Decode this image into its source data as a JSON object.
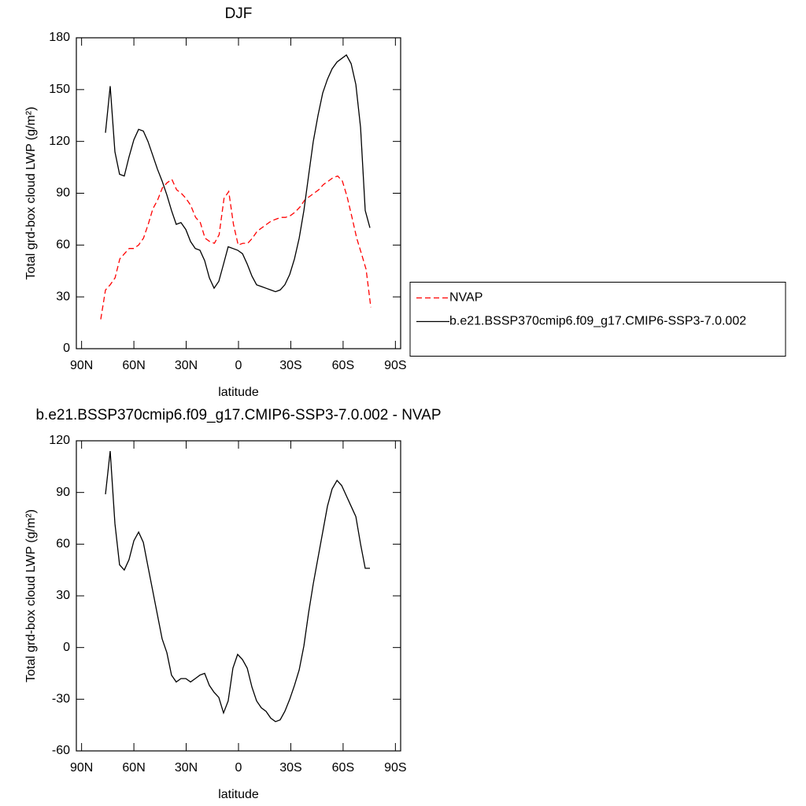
{
  "chart_data": [
    {
      "type": "line",
      "title": "DJF",
      "xlabel": "latitude",
      "ylabel": "Total grd-box cloud LWP (g/m²)",
      "xlim": [
        93,
        -93
      ],
      "xticks": [
        {
          "value": 90,
          "label": "90N"
        },
        {
          "value": 60,
          "label": "60N"
        },
        {
          "value": 30,
          "label": "30N"
        },
        0,
        {
          "value": -30,
          "label": "30S"
        },
        {
          "value": -60,
          "label": "60S"
        },
        {
          "value": -90,
          "label": "90S"
        }
      ],
      "ylim": [
        0,
        180
      ],
      "yticks": [
        0,
        30,
        60,
        90,
        120,
        150,
        180
      ],
      "legend": "right",
      "series": [
        {
          "name": "NVAP",
          "color": "#ff0000",
          "linestyle": "dashed",
          "x": [
            79.0,
            76.3,
            73.6,
            70.8,
            68.1,
            65.4,
            62.7,
            60.0,
            57.3,
            54.5,
            51.8,
            49.1,
            46.4,
            43.7,
            41.0,
            38.2,
            35.5,
            32.8,
            30.1,
            27.4,
            24.6,
            21.9,
            19.2,
            16.5,
            13.8,
            11.1,
            8.3,
            5.6,
            2.9,
            0.2,
            -2.5,
            -5.3,
            -8.0,
            -10.7,
            -13.4,
            -16.1,
            -18.9,
            -21.6,
            -24.3,
            -27.0,
            -29.7,
            -32.4,
            -35.2,
            -37.9,
            -40.6,
            -43.3,
            -46.0,
            -48.7,
            -51.5,
            -54.2,
            -56.9,
            -59.6,
            -62.3,
            -65.1,
            -67.8,
            -70.5,
            -73.2,
            -75.9
          ],
          "values": [
            17,
            34,
            37,
            41,
            52,
            55,
            58,
            58,
            60,
            64,
            72,
            81,
            86,
            93,
            96,
            98,
            92,
            90,
            87,
            83,
            76,
            73,
            64,
            62,
            61,
            66,
            87,
            91,
            72,
            60,
            61,
            61,
            64,
            68,
            70,
            72,
            74,
            75,
            76,
            76,
            77,
            79,
            82,
            86,
            88,
            90,
            92,
            95,
            97,
            99,
            100,
            97,
            88,
            76,
            64,
            55,
            46,
            24
          ]
        },
        {
          "name": "b.e21.BSSP370cmip6.f09_g17.CMIP6-SSP3-7.0.002",
          "color": "#000000",
          "linestyle": "solid",
          "x": [
            76.3,
            73.6,
            70.9,
            68.2,
            65.5,
            62.8,
            60.0,
            57.3,
            54.6,
            51.9,
            49.2,
            46.5,
            43.8,
            41.1,
            38.4,
            35.7,
            33.0,
            30.2,
            27.5,
            24.8,
            22.1,
            19.4,
            16.7,
            14.0,
            11.3,
            8.6,
            5.9,
            3.2,
            0.5,
            -2.3,
            -5.0,
            -7.7,
            -10.4,
            -13.1,
            -15.8,
            -18.5,
            -21.2,
            -23.9,
            -26.6,
            -29.4,
            -32.1,
            -34.8,
            -37.5,
            -40.2,
            -42.9,
            -45.6,
            -48.3,
            -51.0,
            -53.7,
            -56.5,
            -59.2,
            -61.9,
            -64.6,
            -67.3,
            -70.0,
            -72.7,
            -75.4
          ],
          "values": [
            125,
            152,
            114,
            101,
            100,
            111,
            121,
            127,
            126,
            120,
            112,
            104,
            97,
            89,
            80,
            72,
            73,
            69,
            62,
            58,
            57,
            51,
            41,
            35,
            39,
            49,
            59,
            58,
            57,
            55,
            49,
            42,
            37,
            36,
            35,
            34,
            33,
            34,
            37,
            43,
            52,
            64,
            80,
            100,
            120,
            135,
            148,
            156,
            162,
            166,
            168,
            170,
            165,
            153,
            128,
            80,
            70
          ]
        }
      ]
    },
    {
      "type": "line",
      "title": "b.e21.BSSP370cmip6.f09_g17.CMIP6-SSP3-7.0.002 - NVAP",
      "xlabel": "latitude",
      "ylabel": "Total grd-box cloud LWP (g/m²)",
      "xlim": [
        93,
        -93
      ],
      "xticks": [
        {
          "value": 90,
          "label": "90N"
        },
        {
          "value": 60,
          "label": "60N"
        },
        {
          "value": 30,
          "label": "30N"
        },
        0,
        {
          "value": -30,
          "label": "30S"
        },
        {
          "value": -60,
          "label": "60S"
        },
        {
          "value": -90,
          "label": "90S"
        }
      ],
      "ylim": [
        -60,
        120
      ],
      "yticks": [
        -60,
        -30,
        0,
        30,
        60,
        90,
        120
      ],
      "color": "#000000",
      "x": [
        76.3,
        73.6,
        70.9,
        68.2,
        65.5,
        62.8,
        60.0,
        57.3,
        54.6,
        51.9,
        49.2,
        46.5,
        43.8,
        41.1,
        38.4,
        35.7,
        33.0,
        30.2,
        27.5,
        24.8,
        22.1,
        19.4,
        16.7,
        14.0,
        11.3,
        8.6,
        5.9,
        3.2,
        0.5,
        -2.3,
        -5.0,
        -7.7,
        -10.4,
        -13.1,
        -15.8,
        -18.5,
        -21.2,
        -23.9,
        -26.6,
        -29.4,
        -32.1,
        -34.8,
        -37.5,
        -40.2,
        -42.9,
        -45.6,
        -48.3,
        -51.0,
        -53.7,
        -56.5,
        -59.2,
        -61.9,
        -64.6,
        -67.3,
        -70.0,
        -72.7,
        -75.4
      ],
      "values": [
        89,
        114,
        72,
        48,
        45,
        51,
        62,
        67,
        61,
        47,
        33,
        19,
        5,
        -3,
        -16,
        -20,
        -18,
        -18,
        -20,
        -18,
        -16,
        -15,
        -22,
        -26,
        -29,
        -38,
        -31,
        -12,
        -4,
        -7,
        -12,
        -23,
        -31,
        -35,
        -37,
        -41,
        -43,
        -42,
        -37,
        -30,
        -22,
        -13,
        1,
        20,
        37,
        52,
        67,
        82,
        92,
        97,
        94,
        88,
        82,
        76,
        60,
        46,
        46
      ]
    }
  ]
}
